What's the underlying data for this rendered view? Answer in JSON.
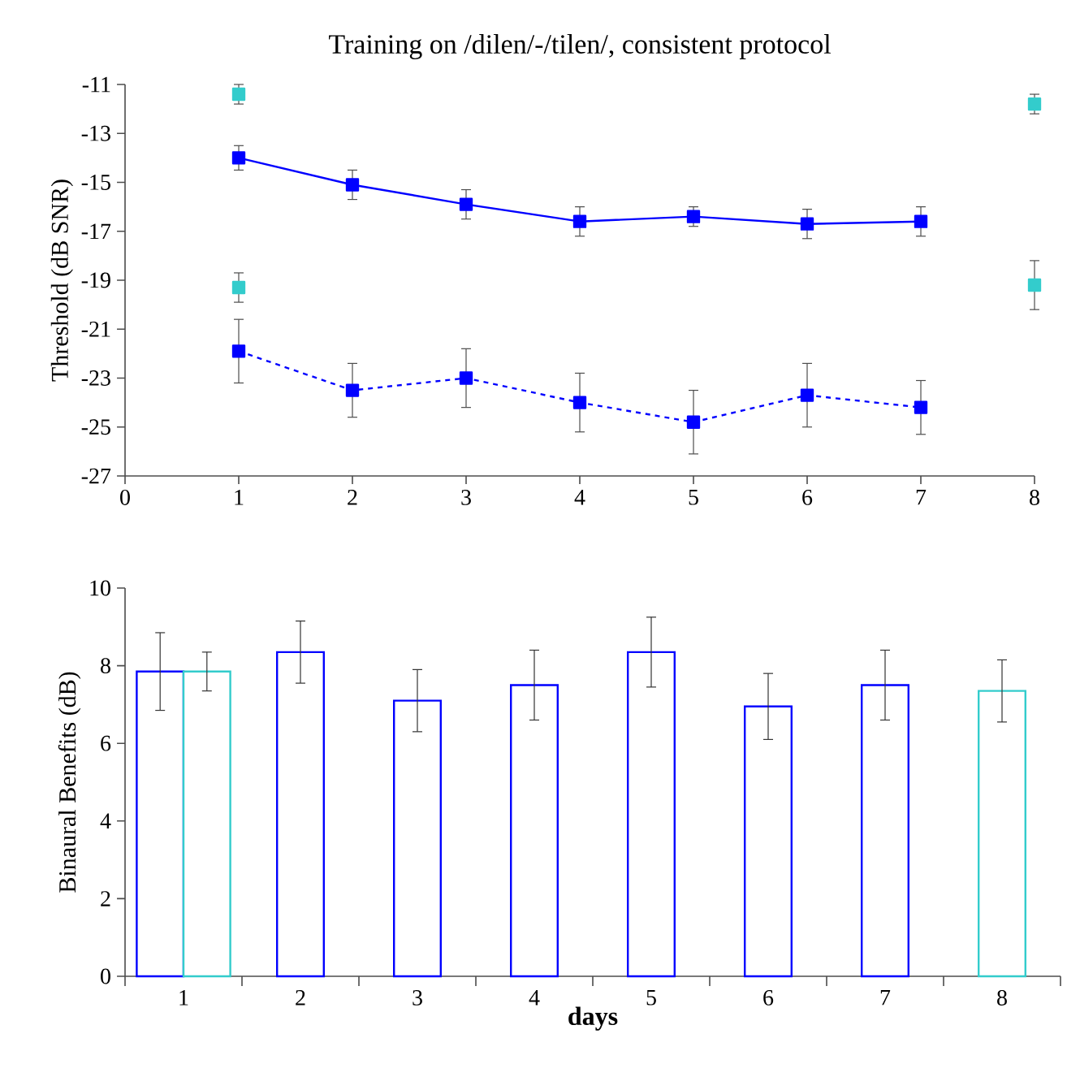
{
  "chart_data": [
    {
      "type": "line",
      "title": "Training on /dilen/-/tilen/, consistent protocol",
      "ylabel": "Threshold (dB SNR)",
      "xlim": [
        0,
        8
      ],
      "xticks": [
        0,
        1,
        2,
        3,
        4,
        5,
        6,
        7,
        8
      ],
      "ylim": [
        -27,
        -11
      ],
      "yticks": [
        -27,
        -25,
        -23,
        -21,
        -19,
        -17,
        -15,
        -13,
        -11
      ],
      "marker": "square",
      "series": [
        {
          "color": "#0000ff",
          "line_style": "solid",
          "x": [
            1,
            2,
            3,
            4,
            5,
            6,
            7
          ],
          "values": [
            -14.0,
            -15.1,
            -15.9,
            -16.6,
            -16.4,
            -16.7,
            -16.6
          ],
          "errors": [
            0.5,
            0.6,
            0.6,
            0.6,
            0.4,
            0.6,
            0.6
          ]
        },
        {
          "color": "#0000ff",
          "line_style": "dashed",
          "x": [
            1,
            2,
            3,
            4,
            5,
            6,
            7
          ],
          "values": [
            -21.9,
            -23.5,
            -23.0,
            -24.0,
            -24.8,
            -23.7,
            -24.2
          ],
          "errors": [
            1.3,
            1.1,
            1.2,
            1.2,
            1.3,
            1.3,
            1.1
          ]
        },
        {
          "type": "scatter",
          "color": "#33cccc",
          "x": [
            1,
            8
          ],
          "values": [
            -11.4,
            -11.8
          ],
          "errors": [
            0.4,
            0.4
          ]
        },
        {
          "type": "scatter",
          "color": "#33cccc",
          "x": [
            1,
            8
          ],
          "values": [
            -19.3,
            -19.2
          ],
          "errors": [
            0.6,
            1.0
          ]
        }
      ]
    },
    {
      "type": "bar",
      "xlabel": "days",
      "ylabel": "Binaural Benefits (dB)",
      "categories": [
        "1",
        "2",
        "3",
        "4",
        "5",
        "6",
        "7",
        "8"
      ],
      "ylim": [
        0,
        10
      ],
      "yticks": [
        0,
        2,
        4,
        6,
        8,
        10
      ],
      "series": [
        {
          "color": "#0000ff",
          "values": [
            7.85,
            8.35,
            7.1,
            7.5,
            8.35,
            6.95,
            7.5,
            null
          ],
          "errors": [
            1.0,
            0.8,
            0.8,
            0.9,
            0.9,
            0.85,
            0.9,
            null
          ]
        },
        {
          "color": "#33cccc",
          "values": [
            7.85,
            null,
            null,
            null,
            null,
            null,
            null,
            7.35
          ],
          "errors": [
            0.5,
            null,
            null,
            null,
            null,
            null,
            null,
            0.8
          ]
        }
      ]
    }
  ]
}
